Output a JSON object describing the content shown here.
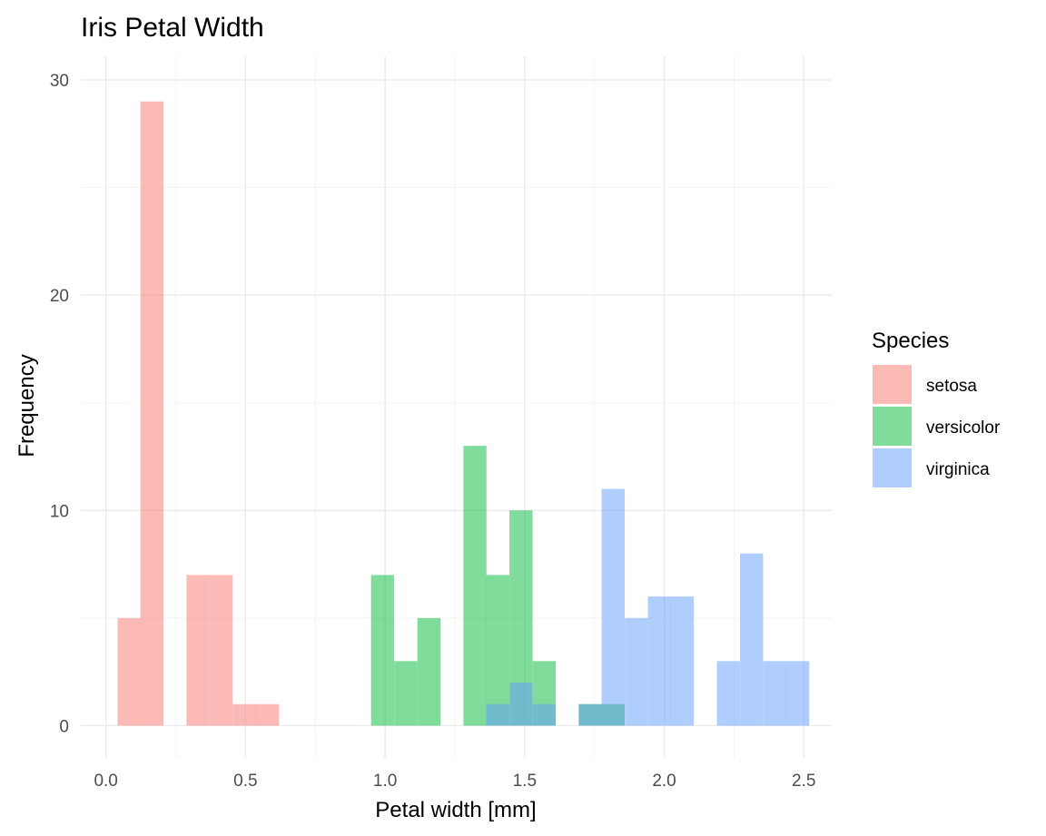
{
  "chart_data": {
    "type": "bar",
    "title": "Iris Petal Width",
    "xlabel": "Petal width [mm]",
    "ylabel": "Frequency",
    "xlim": [
      -0.09,
      2.6
    ],
    "ylim": [
      -1.5,
      31.1
    ],
    "x_ticks": [
      0.0,
      0.5,
      1.0,
      1.5,
      2.0,
      2.5
    ],
    "x_tick_labels": [
      "0.0",
      "0.5",
      "1.0",
      "1.5",
      "2.0",
      "2.5"
    ],
    "y_ticks": [
      0,
      10,
      20,
      30
    ],
    "y_tick_labels": [
      "0",
      "10",
      "20",
      "30"
    ],
    "grid": true,
    "bin_width": 0.0826,
    "legend": {
      "title": "Species",
      "position": "right"
    },
    "series": [
      {
        "name": "setosa",
        "color": "#f8766d",
        "bins": [
          {
            "x": 0.083,
            "count": 5
          },
          {
            "x": 0.165,
            "count": 29
          },
          {
            "x": 0.33,
            "count": 7
          },
          {
            "x": 0.413,
            "count": 7
          },
          {
            "x": 0.496,
            "count": 1
          },
          {
            "x": 0.578,
            "count": 1
          }
        ]
      },
      {
        "name": "versicolor",
        "color": "#00ba38",
        "bins": [
          {
            "x": 0.991,
            "count": 7
          },
          {
            "x": 1.074,
            "count": 3
          },
          {
            "x": 1.157,
            "count": 5
          },
          {
            "x": 1.322,
            "count": 13
          },
          {
            "x": 1.404,
            "count": 7
          },
          {
            "x": 1.487,
            "count": 10
          },
          {
            "x": 1.57,
            "count": 3
          },
          {
            "x": 1.735,
            "count": 1
          },
          {
            "x": 1.817,
            "count": 1
          }
        ]
      },
      {
        "name": "virginica",
        "color": "#619cff",
        "bins": [
          {
            "x": 1.404,
            "count": 1
          },
          {
            "x": 1.487,
            "count": 2
          },
          {
            "x": 1.57,
            "count": 1
          },
          {
            "x": 1.735,
            "count": 1
          },
          {
            "x": 1.817,
            "count": 11
          },
          {
            "x": 1.9,
            "count": 5
          },
          {
            "x": 1.983,
            "count": 6
          },
          {
            "x": 2.065,
            "count": 6
          },
          {
            "x": 2.23,
            "count": 3
          },
          {
            "x": 2.313,
            "count": 8
          },
          {
            "x": 2.396,
            "count": 3
          },
          {
            "x": 2.478,
            "count": 3
          }
        ]
      }
    ]
  }
}
